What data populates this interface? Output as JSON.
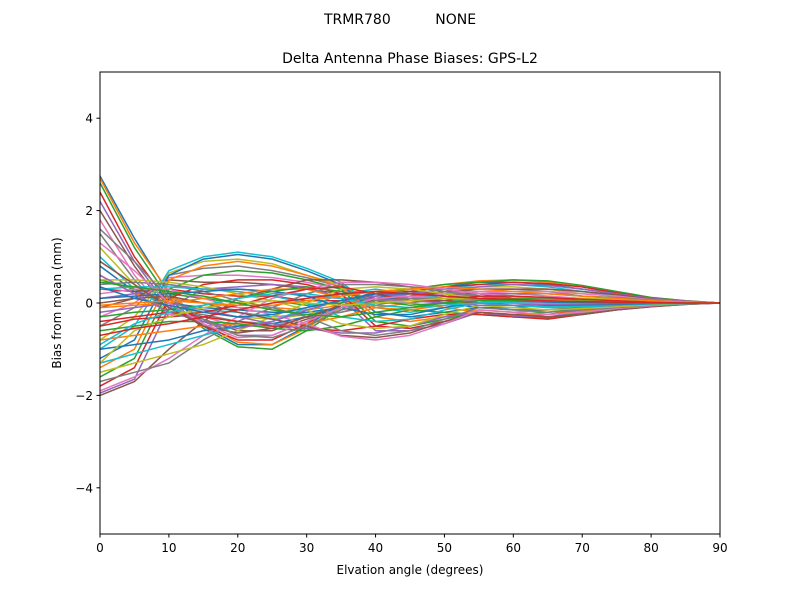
{
  "figure": {
    "suptitle": "TRMR780          NONE"
  },
  "chart_data": {
    "type": "line",
    "title": "Delta Antenna Phase Biases: GPS-L2",
    "xlabel": "Elvation angle (degrees)",
    "ylabel": "Bias from mean (mm)",
    "xlim": [
      0,
      90
    ],
    "ylim": [
      -5,
      5
    ],
    "xticks": [
      0,
      10,
      20,
      30,
      40,
      50,
      60,
      70,
      80,
      90
    ],
    "yticks": [
      -4,
      -2,
      0,
      2,
      4
    ],
    "ytick_labels": [
      "−4",
      "−2",
      "0",
      "2",
      "4"
    ],
    "grid": false,
    "legend": "none",
    "x": [
      0,
      5,
      10,
      15,
      20,
      25,
      30,
      35,
      40,
      45,
      50,
      55,
      60,
      65,
      70,
      75,
      80,
      85,
      90
    ],
    "palette": [
      "#1f77b4",
      "#ff7f0e",
      "#2ca02c",
      "#d62728",
      "#9467bd",
      "#8c564b",
      "#e377c2",
      "#7f7f7f",
      "#bcbd22",
      "#17becf"
    ],
    "series": [
      {
        "values": [
          2.75,
          1.4,
          0.2,
          -0.5,
          -0.9,
          -0.9,
          -0.5,
          0.0,
          0.25,
          0.3,
          0.2,
          0.1,
          0.05,
          0.0,
          0.0,
          0.0,
          0.0,
          0.0,
          0.0
        ]
      },
      {
        "values": [
          2.7,
          1.3,
          0.25,
          -0.45,
          -0.85,
          -0.9,
          -0.55,
          -0.05,
          0.2,
          0.25,
          0.2,
          0.1,
          0.05,
          0.02,
          0.0,
          0.0,
          0.0,
          0.0,
          0.0
        ]
      },
      {
        "values": [
          2.6,
          1.2,
          0.1,
          -0.55,
          -0.95,
          -1.0,
          -0.6,
          -0.1,
          0.15,
          0.2,
          0.15,
          0.1,
          0.05,
          0.0,
          0.0,
          0.0,
          0.0,
          0.0,
          0.0
        ]
      },
      {
        "values": [
          2.4,
          1.0,
          0.0,
          -0.5,
          -0.8,
          -0.8,
          -0.45,
          0.0,
          0.2,
          0.25,
          0.2,
          0.15,
          0.1,
          0.05,
          0.03,
          0.02,
          0.01,
          0.0,
          0.0
        ]
      },
      {
        "values": [
          2.2,
          0.9,
          -0.1,
          -0.4,
          -0.7,
          -0.7,
          -0.4,
          -0.1,
          0.1,
          0.2,
          0.2,
          0.15,
          0.1,
          0.05,
          0.03,
          0.02,
          0.01,
          0.0,
          0.0
        ]
      },
      {
        "values": [
          2.0,
          0.8,
          -0.2,
          -0.35,
          -0.6,
          -0.6,
          -0.35,
          -0.15,
          0.05,
          0.15,
          0.2,
          0.2,
          0.15,
          0.1,
          0.05,
          0.03,
          0.01,
          0.0,
          0.0
        ]
      },
      {
        "values": [
          1.8,
          0.6,
          -0.25,
          -0.3,
          -0.5,
          -0.5,
          -0.3,
          -0.2,
          0.0,
          0.1,
          0.2,
          0.25,
          0.2,
          0.15,
          0.1,
          0.05,
          0.02,
          0.01,
          0.0
        ]
      },
      {
        "values": [
          1.5,
          0.5,
          -0.3,
          -0.25,
          -0.4,
          -0.45,
          -0.3,
          -0.2,
          -0.05,
          0.1,
          0.2,
          0.3,
          0.3,
          0.25,
          0.15,
          0.1,
          0.05,
          0.02,
          0.0
        ]
      },
      {
        "values": [
          1.2,
          0.4,
          -0.2,
          -0.2,
          -0.3,
          -0.35,
          -0.25,
          -0.15,
          0.0,
          0.15,
          0.25,
          0.35,
          0.35,
          0.3,
          0.2,
          0.15,
          0.07,
          0.03,
          0.0
        ]
      },
      {
        "values": [
          1.0,
          0.3,
          -0.1,
          -0.15,
          -0.2,
          -0.3,
          -0.25,
          -0.1,
          0.05,
          0.2,
          0.3,
          0.4,
          0.4,
          0.35,
          0.25,
          0.15,
          0.08,
          0.03,
          0.0
        ]
      },
      {
        "values": [
          0.8,
          0.25,
          0.0,
          -0.1,
          -0.15,
          -0.2,
          -0.2,
          -0.1,
          0.1,
          0.25,
          0.35,
          0.45,
          0.45,
          0.4,
          0.3,
          0.2,
          0.1,
          0.04,
          0.0
        ]
      },
      {
        "values": [
          0.6,
          0.2,
          0.1,
          0.0,
          -0.1,
          -0.1,
          -0.15,
          -0.05,
          0.15,
          0.3,
          0.4,
          0.48,
          0.5,
          0.45,
          0.35,
          0.22,
          0.12,
          0.05,
          0.0
        ]
      },
      {
        "values": [
          0.5,
          0.3,
          0.2,
          0.1,
          0.0,
          0.05,
          -0.05,
          0.0,
          0.2,
          0.3,
          0.4,
          0.45,
          0.5,
          0.48,
          0.38,
          0.25,
          0.12,
          0.05,
          0.0
        ]
      },
      {
        "values": [
          0.3,
          0.25,
          0.3,
          0.2,
          0.15,
          0.15,
          0.05,
          0.05,
          0.2,
          0.25,
          0.35,
          0.4,
          0.45,
          0.42,
          0.35,
          0.22,
          0.1,
          0.04,
          0.0
        ]
      },
      {
        "values": [
          0.1,
          0.2,
          0.4,
          0.3,
          0.3,
          0.25,
          0.15,
          0.1,
          0.15,
          0.2,
          0.3,
          0.35,
          0.4,
          0.38,
          0.3,
          0.2,
          0.1,
          0.04,
          0.0
        ]
      },
      {
        "values": [
          -0.1,
          0.1,
          0.5,
          0.45,
          0.45,
          0.4,
          0.3,
          0.2,
          0.1,
          0.15,
          0.25,
          0.3,
          0.3,
          0.3,
          0.25,
          0.18,
          0.08,
          0.03,
          0.0
        ]
      },
      {
        "values": [
          -0.3,
          0.0,
          0.55,
          0.6,
          0.6,
          0.55,
          0.45,
          0.3,
          0.05,
          0.1,
          0.2,
          0.25,
          0.25,
          0.25,
          0.2,
          0.15,
          0.07,
          0.03,
          0.0
        ]
      },
      {
        "values": [
          -0.5,
          -0.1,
          0.6,
          0.75,
          0.8,
          0.7,
          0.55,
          0.35,
          0.0,
          0.0,
          0.1,
          0.2,
          0.2,
          0.2,
          0.15,
          0.12,
          0.06,
          0.02,
          0.0
        ]
      },
      {
        "values": [
          -0.8,
          -0.3,
          0.65,
          0.9,
          0.95,
          0.85,
          0.6,
          0.4,
          -0.05,
          -0.1,
          0.0,
          0.1,
          0.1,
          0.12,
          0.1,
          0.08,
          0.04,
          0.02,
          0.0
        ]
      },
      {
        "values": [
          -1.0,
          -0.5,
          0.7,
          1.0,
          1.1,
          1.0,
          0.75,
          0.45,
          -0.1,
          -0.2,
          -0.1,
          0.0,
          0.0,
          0.05,
          0.05,
          0.04,
          0.02,
          0.01,
          0.0
        ]
      },
      {
        "values": [
          -1.2,
          -0.8,
          0.6,
          0.95,
          1.05,
          0.95,
          0.7,
          0.4,
          -0.2,
          -0.3,
          -0.2,
          -0.1,
          -0.1,
          -0.05,
          0.0,
          0.0,
          0.0,
          0.0,
          0.0
        ]
      },
      {
        "values": [
          -1.4,
          -1.0,
          0.5,
          0.8,
          0.9,
          0.8,
          0.6,
          0.35,
          -0.3,
          -0.4,
          -0.3,
          -0.15,
          -0.2,
          -0.15,
          -0.08,
          -0.05,
          -0.02,
          -0.01,
          0.0
        ]
      },
      {
        "values": [
          -1.6,
          -1.2,
          0.3,
          0.6,
          0.7,
          0.65,
          0.5,
          0.3,
          -0.4,
          -0.5,
          -0.35,
          -0.2,
          -0.25,
          -0.2,
          -0.12,
          -0.08,
          -0.04,
          -0.02,
          0.0
        ]
      },
      {
        "values": [
          -1.8,
          -1.4,
          0.1,
          0.4,
          0.5,
          0.5,
          0.4,
          0.2,
          -0.5,
          -0.55,
          -0.4,
          -0.2,
          -0.3,
          -0.25,
          -0.15,
          -0.1,
          -0.05,
          -0.02,
          0.0
        ]
      },
      {
        "values": [
          -1.95,
          -1.65,
          -0.1,
          0.3,
          0.35,
          0.4,
          0.35,
          0.1,
          -0.6,
          -0.6,
          -0.45,
          -0.2,
          -0.3,
          -0.3,
          -0.2,
          -0.12,
          -0.06,
          -0.02,
          0.0
        ]
      },
      {
        "values": [
          -2.0,
          -1.7,
          -1.0,
          -0.4,
          0.1,
          0.3,
          0.5,
          0.5,
          0.45,
          0.35,
          0.3,
          0.2,
          0.1,
          0.05,
          0.02,
          0.01,
          0.0,
          0.0,
          0.0
        ]
      },
      {
        "values": [
          -1.9,
          -1.6,
          -1.2,
          -0.7,
          -0.3,
          0.1,
          0.3,
          0.45,
          0.45,
          0.4,
          0.3,
          0.2,
          0.15,
          0.08,
          0.04,
          0.02,
          0.01,
          0.0,
          0.0
        ]
      },
      {
        "values": [
          -1.7,
          -1.5,
          -1.3,
          -0.8,
          -0.4,
          -0.1,
          0.2,
          0.4,
          0.4,
          0.35,
          0.25,
          0.15,
          0.1,
          0.05,
          0.03,
          0.02,
          0.01,
          0.0,
          0.0
        ]
      },
      {
        "values": [
          -1.5,
          -1.3,
          -1.1,
          -0.9,
          -0.6,
          -0.3,
          0.0,
          0.3,
          0.35,
          0.3,
          0.2,
          0.1,
          0.05,
          0.02,
          0.01,
          0.0,
          0.0,
          0.0,
          0.0
        ]
      },
      {
        "values": [
          -1.3,
          -1.1,
          -0.9,
          -0.7,
          -0.5,
          -0.4,
          -0.1,
          0.2,
          0.3,
          0.2,
          0.1,
          0.0,
          -0.05,
          -0.08,
          -0.06,
          -0.04,
          -0.02,
          -0.01,
          0.0
        ]
      },
      {
        "values": [
          -1.0,
          -0.9,
          -0.8,
          -0.6,
          -0.5,
          -0.45,
          -0.3,
          -0.1,
          0.1,
          0.1,
          0.0,
          -0.1,
          -0.15,
          -0.15,
          -0.1,
          -0.06,
          -0.03,
          -0.01,
          0.0
        ]
      },
      {
        "values": [
          -0.8,
          -0.7,
          -0.6,
          -0.5,
          -0.45,
          -0.5,
          -0.45,
          -0.3,
          -0.1,
          0.0,
          -0.1,
          -0.2,
          -0.25,
          -0.25,
          -0.18,
          -0.1,
          -0.05,
          -0.02,
          0.0
        ]
      },
      {
        "values": [
          -0.6,
          -0.5,
          -0.4,
          -0.4,
          -0.45,
          -0.55,
          -0.6,
          -0.5,
          -0.3,
          -0.15,
          -0.2,
          -0.25,
          -0.3,
          -0.32,
          -0.22,
          -0.12,
          -0.06,
          -0.02,
          0.0
        ]
      },
      {
        "values": [
          -0.4,
          -0.3,
          -0.2,
          -0.3,
          -0.4,
          -0.5,
          -0.55,
          -0.6,
          -0.5,
          -0.35,
          -0.25,
          -0.25,
          -0.3,
          -0.35,
          -0.25,
          -0.15,
          -0.07,
          -0.03,
          0.0
        ]
      },
      {
        "values": [
          -0.2,
          -0.1,
          0.0,
          -0.15,
          -0.3,
          -0.45,
          -0.55,
          -0.65,
          -0.65,
          -0.5,
          -0.3,
          -0.2,
          -0.28,
          -0.3,
          -0.25,
          -0.15,
          -0.08,
          -0.03,
          0.0
        ]
      },
      {
        "values": [
          0.0,
          0.1,
          0.15,
          0.0,
          -0.2,
          -0.35,
          -0.5,
          -0.7,
          -0.75,
          -0.65,
          -0.4,
          -0.2,
          -0.25,
          -0.3,
          -0.25,
          -0.15,
          -0.08,
          -0.03,
          0.0
        ]
      },
      {
        "values": [
          0.2,
          0.3,
          0.3,
          0.1,
          -0.1,
          -0.25,
          -0.45,
          -0.72,
          -0.8,
          -0.7,
          -0.45,
          -0.15,
          -0.2,
          -0.25,
          -0.2,
          -0.12,
          -0.06,
          -0.02,
          0.0
        ]
      },
      {
        "values": [
          0.4,
          0.45,
          0.4,
          0.25,
          0.05,
          -0.1,
          -0.3,
          -0.6,
          -0.7,
          -0.6,
          -0.35,
          -0.1,
          -0.15,
          -0.2,
          -0.15,
          -0.1,
          -0.05,
          -0.02,
          0.0
        ]
      },
      {
        "values": [
          0.5,
          0.5,
          0.45,
          0.35,
          0.2,
          0.05,
          -0.15,
          -0.45,
          -0.55,
          -0.5,
          -0.25,
          -0.05,
          -0.1,
          -0.15,
          -0.12,
          -0.08,
          -0.04,
          -0.01,
          0.0
        ]
      },
      {
        "values": [
          0.3,
          0.35,
          0.35,
          0.3,
          0.25,
          0.15,
          0.0,
          -0.3,
          -0.4,
          -0.35,
          -0.15,
          0.0,
          -0.05,
          -0.1,
          -0.08,
          -0.05,
          -0.02,
          -0.01,
          0.0
        ]
      },
      {
        "values": [
          0.1,
          0.15,
          0.2,
          0.25,
          0.3,
          0.25,
          0.15,
          -0.1,
          -0.25,
          -0.25,
          -0.1,
          0.05,
          0.0,
          -0.05,
          -0.04,
          -0.03,
          -0.01,
          0.0,
          0.0
        ]
      },
      {
        "values": [
          -0.1,
          -0.05,
          0.0,
          0.1,
          0.2,
          0.3,
          0.3,
          0.1,
          -0.1,
          -0.15,
          -0.05,
          0.05,
          0.05,
          0.0,
          0.0,
          0.0,
          0.0,
          0.0,
          0.0
        ]
      },
      {
        "values": [
          -0.3,
          -0.2,
          -0.15,
          -0.05,
          0.1,
          0.25,
          0.35,
          0.25,
          0.05,
          -0.05,
          0.0,
          0.1,
          0.1,
          0.08,
          0.05,
          0.03,
          0.01,
          0.0,
          0.0
        ]
      },
      {
        "values": [
          -0.5,
          -0.35,
          -0.3,
          -0.2,
          -0.05,
          0.15,
          0.3,
          0.35,
          0.2,
          0.05,
          0.05,
          0.15,
          0.15,
          0.12,
          0.08,
          0.05,
          0.02,
          0.01,
          0.0
        ]
      },
      {
        "values": [
          0.6,
          0.2,
          -0.2,
          -0.4,
          -0.55,
          -0.4,
          -0.15,
          0.05,
          0.1,
          0.05,
          0.0,
          -0.05,
          -0.05,
          -0.03,
          -0.02,
          -0.01,
          0.0,
          0.0,
          0.0
        ]
      },
      {
        "values": [
          0.9,
          0.4,
          -0.1,
          -0.5,
          -0.65,
          -0.55,
          -0.3,
          -0.05,
          0.05,
          0.1,
          0.05,
          0.0,
          0.0,
          0.0,
          0.0,
          0.0,
          0.0,
          0.0,
          0.0
        ]
      },
      {
        "values": [
          1.3,
          0.7,
          0.0,
          -0.45,
          -0.75,
          -0.7,
          -0.4,
          -0.1,
          0.1,
          0.15,
          0.1,
          0.05,
          0.0,
          0.0,
          0.0,
          0.0,
          0.0,
          0.0,
          0.0
        ]
      },
      {
        "values": [
          1.6,
          0.9,
          0.1,
          -0.35,
          -0.7,
          -0.75,
          -0.5,
          -0.15,
          0.05,
          0.1,
          0.1,
          0.08,
          0.05,
          0.03,
          0.02,
          0.01,
          0.0,
          0.0,
          0.0
        ]
      },
      {
        "values": [
          -1.3,
          -0.6,
          -0.3,
          -0.1,
          0.0,
          0.05,
          0.0,
          -0.05,
          0.0,
          0.05,
          0.1,
          0.1,
          0.08,
          0.06,
          0.04,
          0.02,
          0.01,
          0.0,
          0.0
        ]
      },
      {
        "values": [
          -0.9,
          -0.45,
          -0.2,
          -0.05,
          0.1,
          0.2,
          0.2,
          0.1,
          -0.05,
          -0.1,
          -0.05,
          0.0,
          0.02,
          0.03,
          0.02,
          0.01,
          0.0,
          0.0,
          0.0
        ]
      },
      {
        "values": [
          0.35,
          0.1,
          -0.05,
          -0.2,
          -0.3,
          -0.25,
          -0.1,
          0.05,
          0.2,
          0.2,
          0.15,
          0.1,
          0.05,
          0.02,
          0.01,
          0.0,
          0.0,
          0.0,
          0.0
        ]
      },
      {
        "values": [
          -0.05,
          0.0,
          0.05,
          0.0,
          -0.05,
          -0.05,
          0.05,
          0.15,
          0.25,
          0.3,
          0.35,
          0.3,
          0.25,
          0.2,
          0.15,
          0.1,
          0.05,
          0.02,
          0.0
        ]
      },
      {
        "values": [
          0.45,
          0.35,
          0.25,
          0.15,
          0.0,
          -0.15,
          -0.25,
          -0.3,
          -0.2,
          -0.1,
          0.0,
          0.05,
          0.05,
          0.04,
          0.03,
          0.02,
          0.01,
          0.0,
          0.0
        ]
      },
      {
        "values": [
          -0.7,
          -0.55,
          -0.45,
          -0.3,
          -0.15,
          0.0,
          0.1,
          0.2,
          0.25,
          0.2,
          0.15,
          0.1,
          0.08,
          0.05,
          0.03,
          0.02,
          0.01,
          0.0,
          0.0
        ]
      }
    ]
  }
}
